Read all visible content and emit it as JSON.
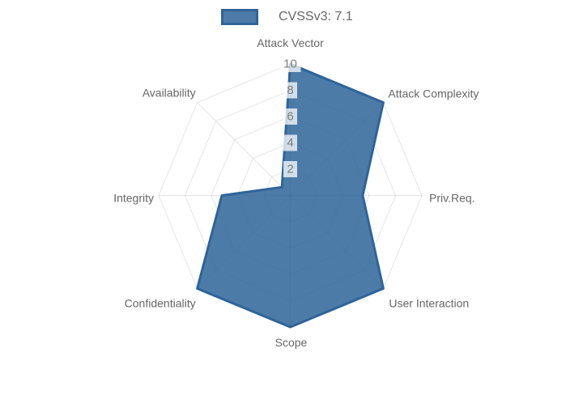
{
  "legend": {
    "label": "CVSSv3: 7.1"
  },
  "colors": {
    "series_fill": "rgba(46,100,153,0.85)",
    "series_border": "#2e6499",
    "grid_line": "rgba(0,0,0,0.1)",
    "tick_text": "#7d7d7d",
    "tick_backdrop": "rgba(255,255,255,0.75)",
    "axis_label_text": "#666666"
  },
  "chart_data": {
    "type": "radar",
    "title": "CVSSv3: 7.1",
    "categories": [
      "Attack Vector",
      "Attack Complexity",
      "Priv.Req.",
      "User Interaction",
      "Scope",
      "Confidentiality",
      "Integrity",
      "Availability"
    ],
    "series": [
      {
        "name": "CVSSv3: 7.1",
        "values": [
          10,
          10,
          5.5,
          10,
          10,
          10,
          5.2,
          0.9
        ]
      }
    ],
    "rlim": [
      0,
      10
    ],
    "rticks": [
      2,
      4,
      6,
      8,
      10
    ],
    "legend_position": "top",
    "grid": true,
    "start_axis": "top",
    "direction": "clockwise"
  }
}
